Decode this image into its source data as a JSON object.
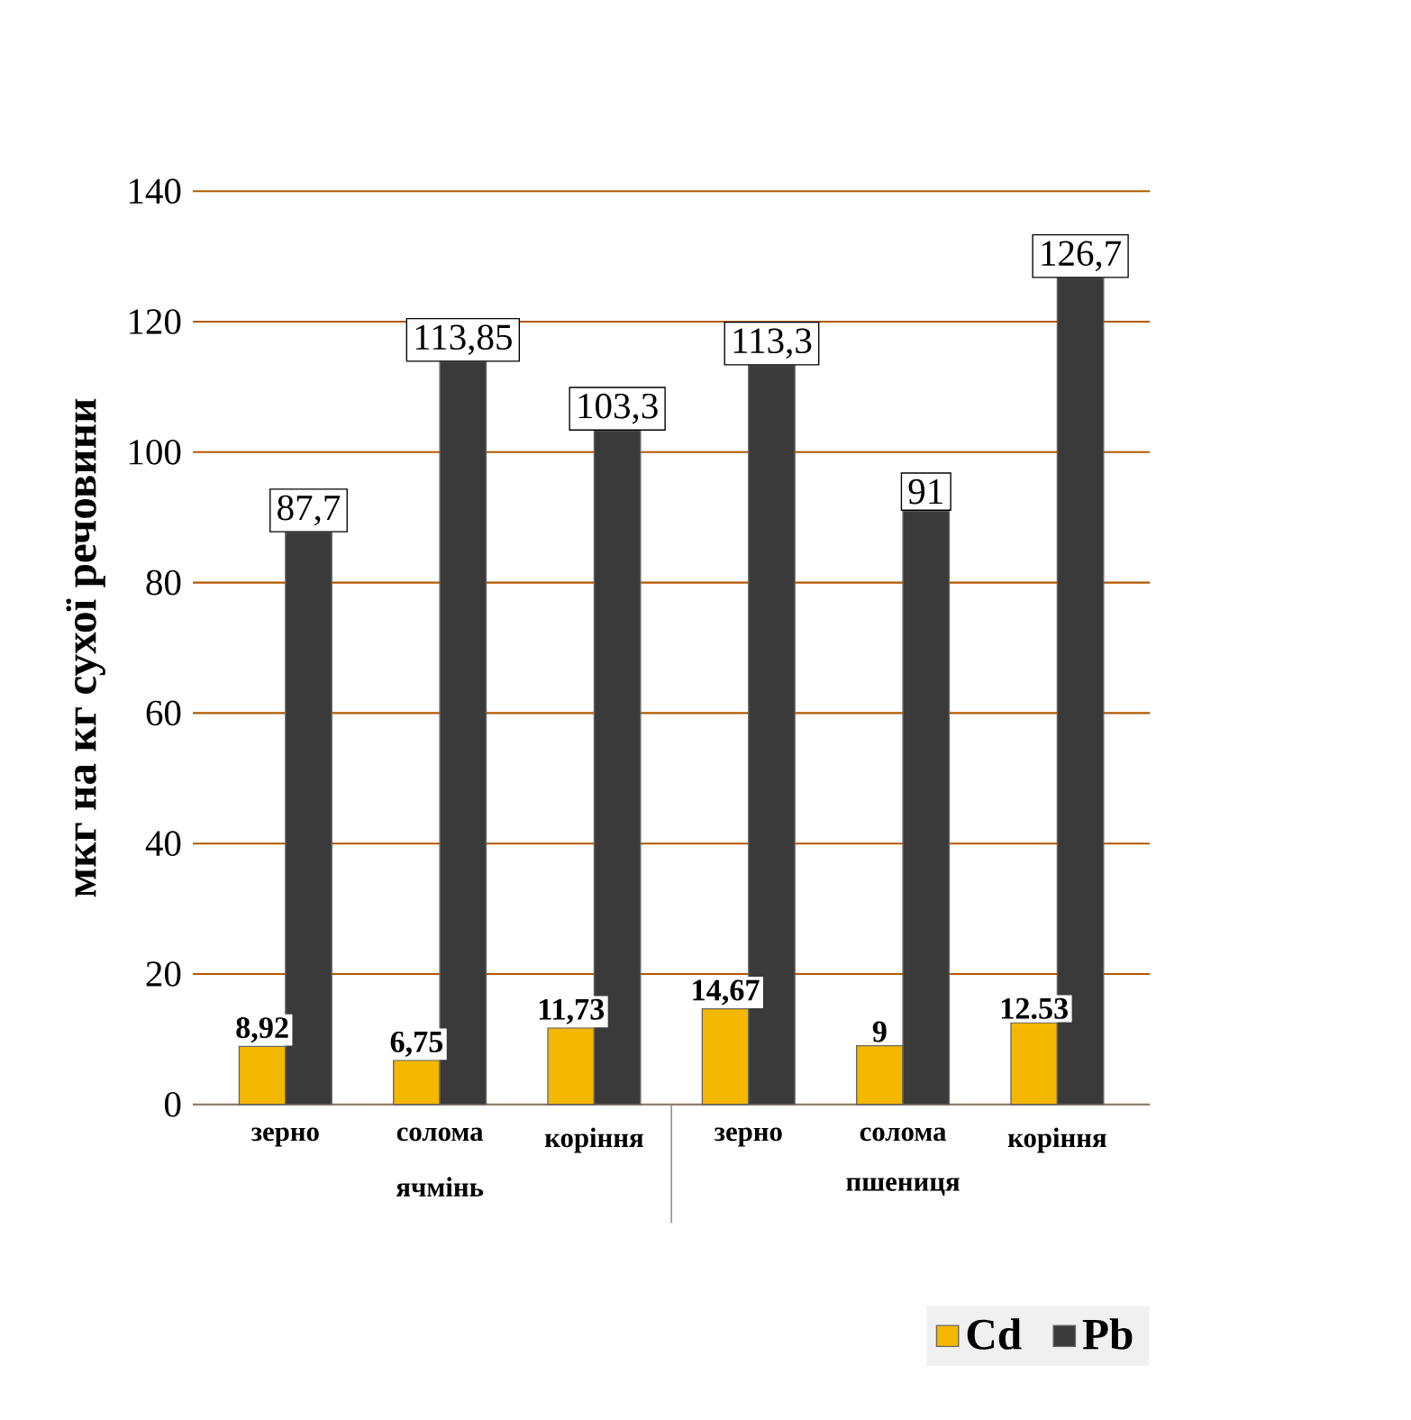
{
  "chart_data": {
    "type": "bar",
    "ylabel": "мкг на кг сухої речовини",
    "categories": [
      "зерно",
      "солома",
      "коріння",
      "зерно",
      "солома",
      "коріння"
    ],
    "annotations": [
      "ячмінь",
      "пшениця"
    ],
    "series": [
      {
        "name": "Cd",
        "color": "#f5b800",
        "values": [
          8.92,
          6.75,
          11.73,
          14.67,
          9,
          12.53
        ],
        "value_labels": [
          "8,92",
          "6,75",
          "11,73",
          "14,67",
          "9",
          "12.53"
        ]
      },
      {
        "name": "Pb",
        "color": "#3a3a3a",
        "values": [
          87.7,
          113.85,
          103.3,
          113.3,
          91,
          126.7
        ],
        "value_labels": [
          "87,7",
          "113,85",
          "103,3",
          "113,3",
          "91",
          "126,7"
        ]
      }
    ],
    "ylim": [
      0,
      140
    ],
    "yticks": [
      0,
      20,
      40,
      60,
      80,
      100,
      120,
      140
    ],
    "grid": "y",
    "legend": "bottom right"
  }
}
